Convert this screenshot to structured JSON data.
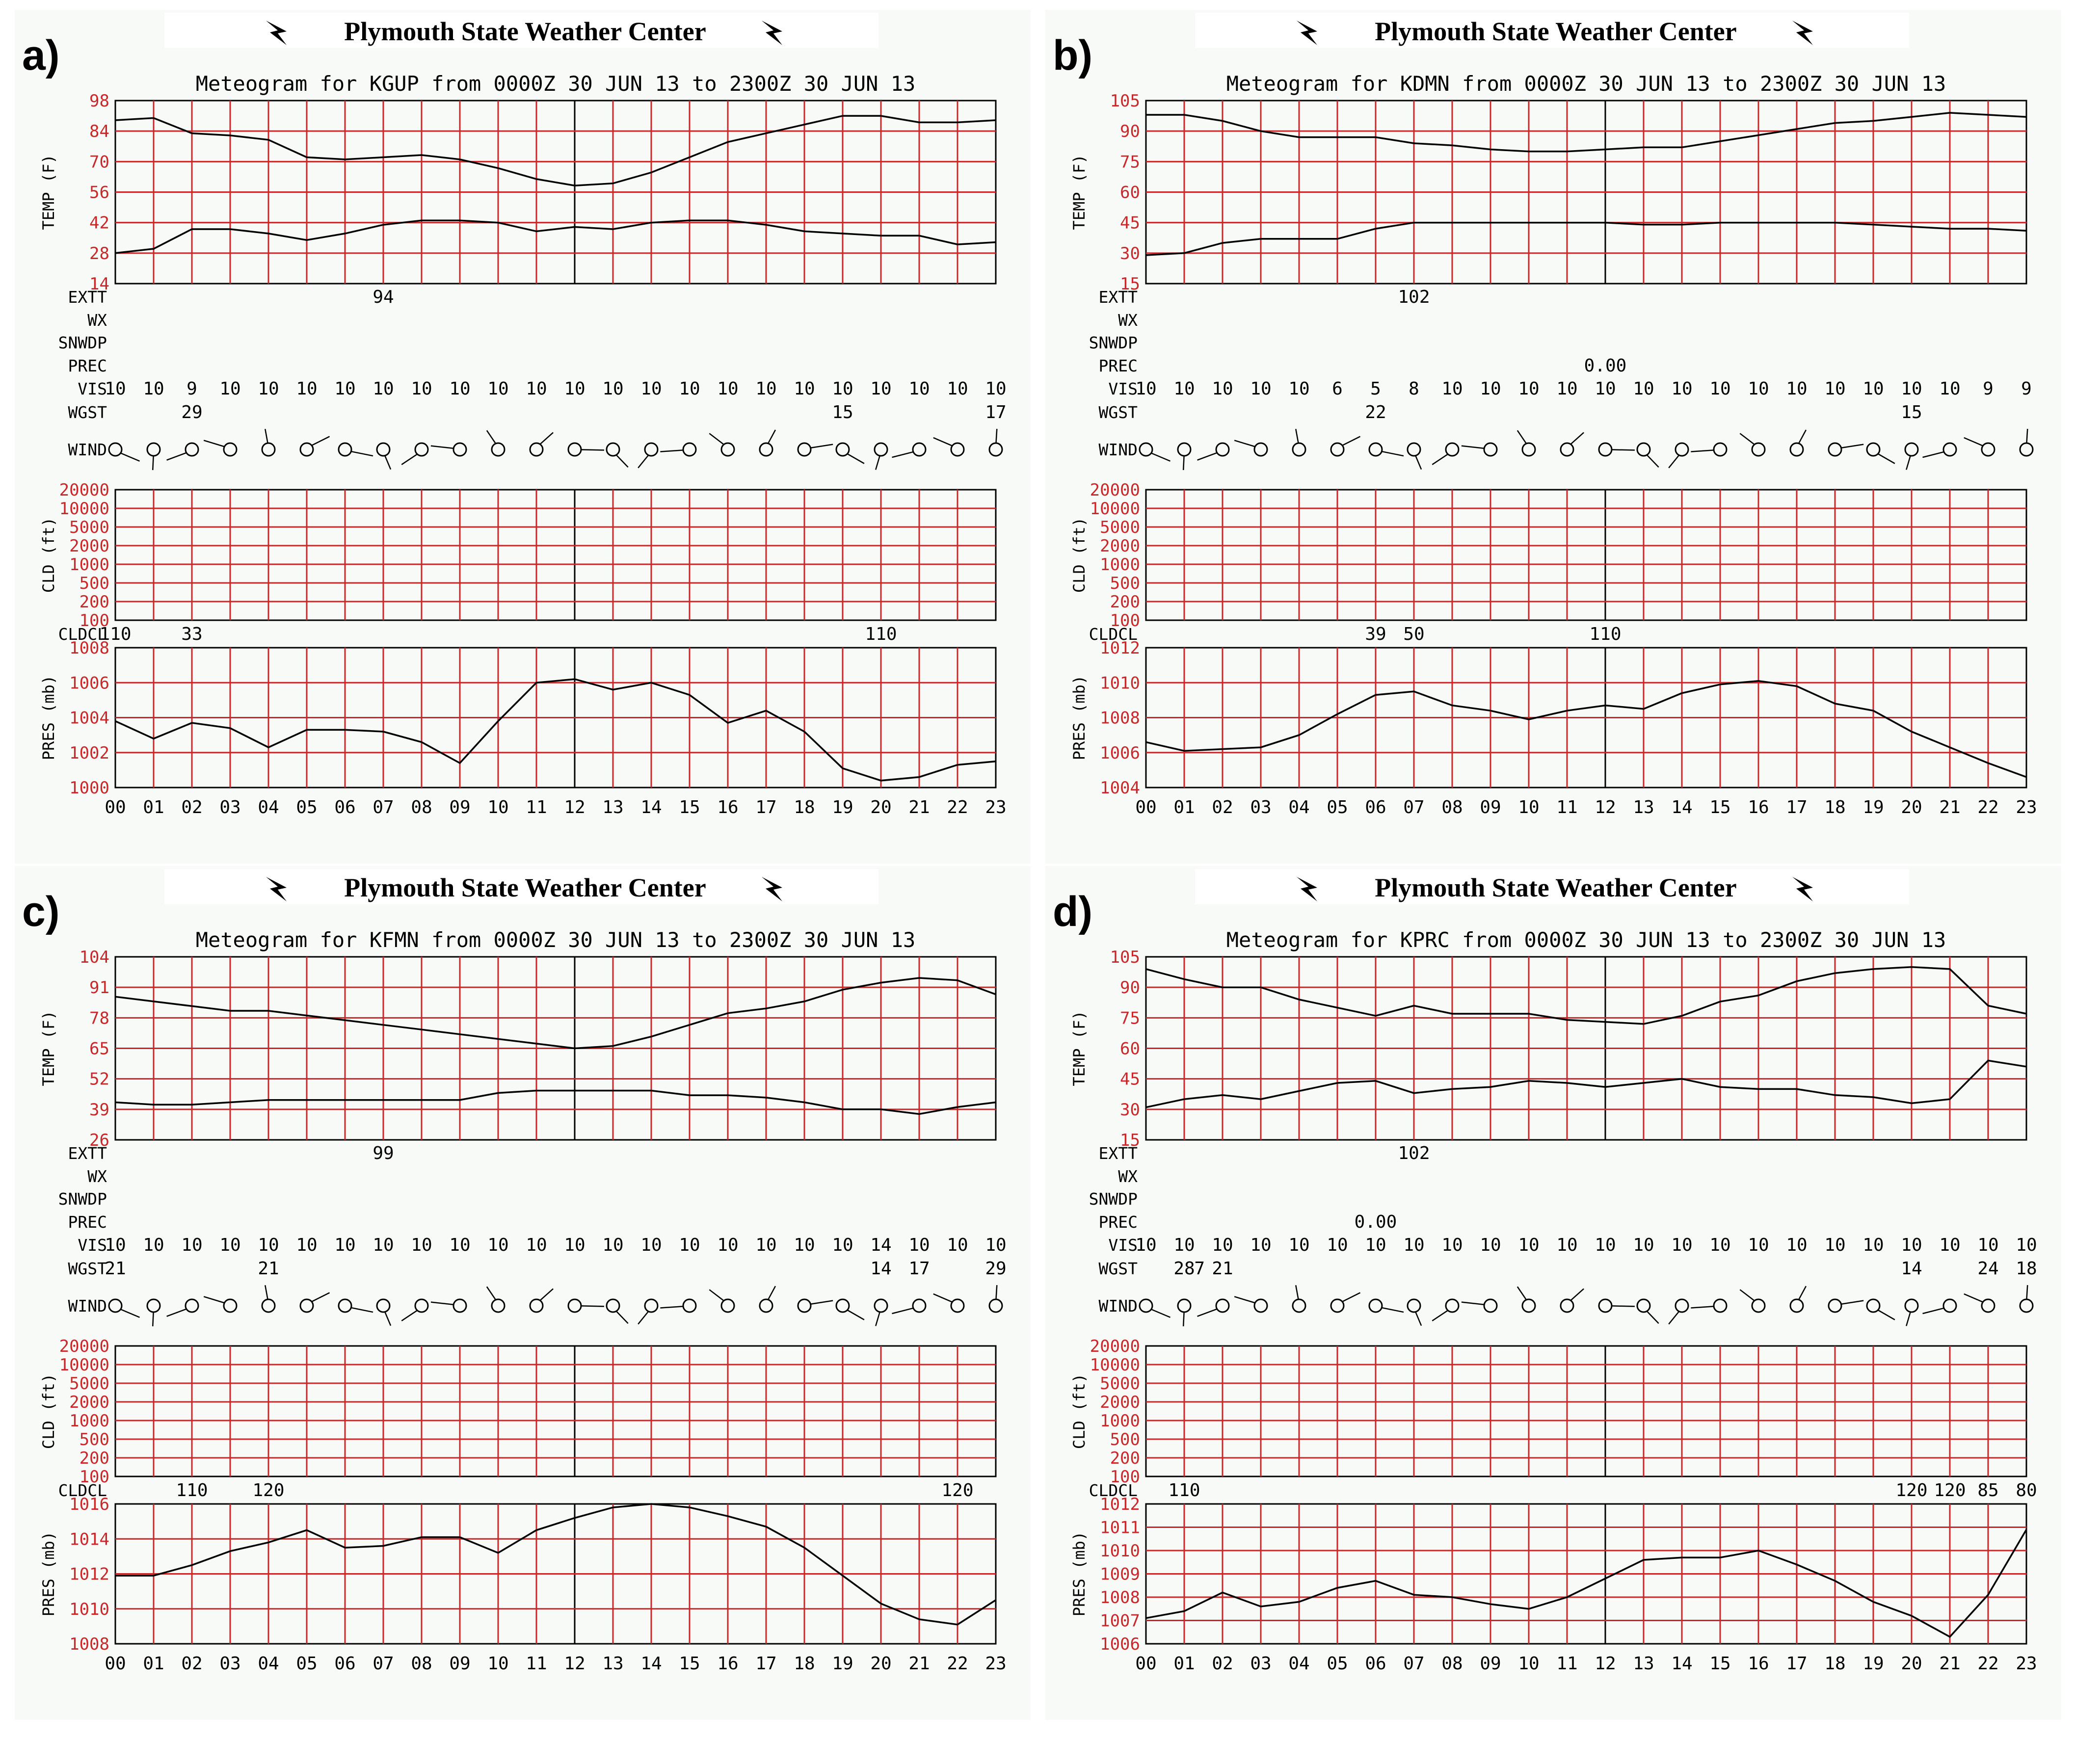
{
  "header_title": "Plymouth State Weather Center",
  "row_labels": {
    "extt": "EXTT",
    "wx": "WX",
    "snwdp": "SNWDP",
    "prec": "PREC",
    "vis": "VIS",
    "wgst": "WGST",
    "wind": "WIND",
    "cldcl": "CLDCL"
  },
  "axis_titles": {
    "temp": "TEMP (F)",
    "cld": "CLD (ft)",
    "pres": "PRES (mb)"
  },
  "hours": [
    "00",
    "01",
    "02",
    "03",
    "04",
    "05",
    "06",
    "07",
    "08",
    "09",
    "10",
    "11",
    "12",
    "13",
    "14",
    "15",
    "16",
    "17",
    "18",
    "19",
    "20",
    "21",
    "22",
    "23"
  ],
  "cld_ticks": [
    "20000",
    "10000",
    "5000",
    "2000",
    "1000",
    "500",
    "200",
    "100"
  ],
  "colors": {
    "grid": "#c8282a",
    "tick_text": "#c8282a",
    "line": "#000000",
    "panel_bg": "#f8faf7"
  },
  "chart_data": [
    {
      "panel": "a)",
      "type": "line",
      "title": "Meteogram for KGUP from 0000Z 30 JUN 13 to 2300Z 30 JUN 13",
      "temp": {
        "ylim": [
          14,
          98
        ],
        "ticks": [
          "98",
          "84",
          "70",
          "56",
          "42",
          "28",
          "14"
        ],
        "series": [
          {
            "name": "temperature",
            "values": [
              89,
              90,
              83,
              82,
              80,
              72,
              71,
              72,
              73,
              71,
              67,
              62,
              59,
              60,
              65,
              72,
              79,
              83,
              87,
              91,
              91,
              88,
              88,
              89
            ]
          },
          {
            "name": "dewpoint",
            "values": [
              28,
              30,
              39,
              39,
              37,
              34,
              37,
              41,
              43,
              43,
              42,
              38,
              40,
              39,
              42,
              43,
              43,
              41,
              38,
              37,
              36,
              36,
              32,
              33
            ]
          }
        ]
      },
      "extt": [
        {
          "hour": 7,
          "text": "94"
        }
      ],
      "prec": [],
      "vis": [
        "10",
        "10",
        "9",
        "10",
        "10",
        "10",
        "10",
        "10",
        "10",
        "10",
        "10",
        "10",
        "10",
        "10",
        "10",
        "10",
        "10",
        "10",
        "10",
        "10",
        "10",
        "10",
        "10",
        "10"
      ],
      "wgst": [
        {
          "hour": 2,
          "text": "29"
        },
        {
          "hour": 19,
          "text": "15"
        },
        {
          "hour": 23,
          "text": "17"
        }
      ],
      "cldcl": [
        {
          "hour": 0,
          "text": "110"
        },
        {
          "hour": 2,
          "text": "33"
        },
        {
          "hour": 20,
          "text": "110"
        }
      ],
      "pres": {
        "ylim": [
          1000,
          1008
        ],
        "ticks": [
          "1008",
          "1006",
          "1004",
          "1002",
          "1000"
        ],
        "values": [
          1003.8,
          1002.8,
          1003.7,
          1003.4,
          1002.3,
          1003.3,
          1003.3,
          1003.2,
          1002.6,
          1001.4,
          1003.8,
          1006.0,
          1006.2,
          1005.6,
          1006.0,
          1005.3,
          1003.7,
          1004.4,
          1003.2,
          1001.1,
          1000.4,
          1000.6,
          1001.3,
          1001.5
        ]
      }
    },
    {
      "panel": "b)",
      "type": "line",
      "title": "Meteogram for KDMN from 0000Z 30 JUN 13 to 2300Z 30 JUN 13",
      "temp": {
        "ylim": [
          15,
          105
        ],
        "ticks": [
          "105",
          "90",
          "75",
          "60",
          "45",
          "30",
          "15"
        ],
        "series": [
          {
            "name": "temperature",
            "values": [
              98,
              98,
              95,
              90,
              87,
              87,
              87,
              84,
              83,
              81,
              80,
              80,
              81,
              82,
              82,
              85,
              88,
              91,
              94,
              95,
              97,
              99,
              98,
              97
            ]
          },
          {
            "name": "dewpoint",
            "values": [
              29,
              30,
              35,
              37,
              37,
              37,
              42,
              45,
              45,
              45,
              45,
              45,
              45,
              44,
              44,
              45,
              45,
              45,
              45,
              44,
              43,
              42,
              42,
              41
            ]
          }
        ]
      },
      "extt": [
        {
          "hour": 7,
          "text": "102"
        }
      ],
      "prec": [
        {
          "hour": 12,
          "text": "0.00"
        }
      ],
      "vis": [
        "10",
        "10",
        "10",
        "10",
        "10",
        "6",
        "5",
        "8",
        "10",
        "10",
        "10",
        "10",
        "10",
        "10",
        "10",
        "10",
        "10",
        "10",
        "10",
        "10",
        "10",
        "10",
        "9",
        "9"
      ],
      "wgst": [
        {
          "hour": 6,
          "text": "22"
        },
        {
          "hour": 20,
          "text": "15"
        }
      ],
      "cldcl": [
        {
          "hour": 6,
          "text": "39"
        },
        {
          "hour": 7,
          "text": "50"
        },
        {
          "hour": 12,
          "text": "110"
        }
      ],
      "pres": {
        "ylim": [
          1004,
          1012
        ],
        "ticks": [
          "1012",
          "1010",
          "1008",
          "1006",
          "1004"
        ],
        "values": [
          1006.6,
          1006.1,
          1006.2,
          1006.3,
          1007.0,
          1008.2,
          1009.3,
          1009.5,
          1008.7,
          1008.4,
          1007.9,
          1008.4,
          1008.7,
          1008.5,
          1009.4,
          1009.9,
          1010.1,
          1009.8,
          1008.8,
          1008.4,
          1007.2,
          1006.3,
          1005.4,
          1004.6
        ]
      }
    },
    {
      "panel": "c)",
      "type": "line",
      "title": "Meteogram for KFMN from 0000Z 30 JUN 13 to 2300Z 30 JUN 13",
      "temp": {
        "ylim": [
          26,
          104
        ],
        "ticks": [
          "104",
          "91",
          "78",
          "65",
          "52",
          "39",
          "26"
        ],
        "series": [
          {
            "name": "temperature",
            "values": [
              87,
              85,
              83,
              81,
              81,
              79,
              77,
              75,
              73,
              71,
              69,
              67,
              65,
              66,
              70,
              75,
              80,
              82,
              85,
              90,
              93,
              95,
              94,
              88
            ]
          },
          {
            "name": "dewpoint",
            "values": [
              42,
              41,
              41,
              42,
              43,
              43,
              43,
              43,
              43,
              43,
              46,
              47,
              47,
              47,
              47,
              45,
              45,
              44,
              42,
              39,
              39,
              37,
              40,
              42
            ]
          }
        ]
      },
      "extt": [
        {
          "hour": 7,
          "text": "99"
        }
      ],
      "prec": [],
      "vis": [
        "10",
        "10",
        "10",
        "10",
        "10",
        "10",
        "10",
        "10",
        "10",
        "10",
        "10",
        "10",
        "10",
        "10",
        "10",
        "10",
        "10",
        "10",
        "10",
        "10",
        "14",
        "10",
        "10",
        "10"
      ],
      "wgst": [
        {
          "hour": 0,
          "text": "21"
        },
        {
          "hour": 4,
          "text": "21"
        },
        {
          "hour": 20,
          "text": "14"
        },
        {
          "hour": 21,
          "text": "17"
        },
        {
          "hour": 23,
          "text": "29"
        }
      ],
      "cldcl": [
        {
          "hour": 2,
          "text": "110"
        },
        {
          "hour": 4,
          "text": "120"
        },
        {
          "hour": 22,
          "text": "120"
        }
      ],
      "pres": {
        "ylim": [
          1008,
          1016
        ],
        "ticks": [
          "1016",
          "1014",
          "1012",
          "1010",
          "1008"
        ],
        "values": [
          1011.9,
          1011.9,
          1012.5,
          1013.3,
          1013.8,
          1014.5,
          1013.5,
          1013.6,
          1014.1,
          1014.1,
          1013.2,
          1014.5,
          1015.2,
          1015.8,
          1016.0,
          1015.8,
          1015.3,
          1014.7,
          1013.5,
          1011.9,
          1010.3,
          1009.4,
          1009.1,
          1010.5
        ]
      }
    },
    {
      "panel": "d)",
      "type": "line",
      "title": "Meteogram for KPRC from 0000Z 30 JUN 13 to 2300Z 30 JUN 13",
      "temp": {
        "ylim": [
          15,
          105
        ],
        "ticks": [
          "105",
          "90",
          "75",
          "60",
          "45",
          "30",
          "15"
        ],
        "series": [
          {
            "name": "temperature",
            "values": [
              99,
              94,
              90,
              90,
              84,
              80,
              76,
              81,
              77,
              77,
              77,
              74,
              73,
              72,
              76,
              83,
              86,
              93,
              97,
              99,
              100,
              99,
              81,
              77
            ]
          },
          {
            "name": "dewpoint",
            "values": [
              31,
              35,
              37,
              35,
              39,
              43,
              44,
              38,
              40,
              41,
              44,
              43,
              41,
              43,
              45,
              41,
              40,
              40,
              37,
              36,
              33,
              35,
              54,
              51
            ]
          }
        ]
      },
      "extt": [
        {
          "hour": 7,
          "text": "102"
        }
      ],
      "prec": [
        {
          "hour": 6,
          "text": "0.00"
        }
      ],
      "vis": [
        "10",
        "10",
        "10",
        "10",
        "10",
        "10",
        "10",
        "10",
        "10",
        "10",
        "10",
        "10",
        "10",
        "10",
        "10",
        "10",
        "10",
        "10",
        "10",
        "10",
        "10",
        "10",
        "10",
        "10"
      ],
      "wgst": [
        {
          "hour": 1,
          "text": "28"
        },
        {
          "hour": 1.4,
          "text": "7"
        },
        {
          "hour": 2,
          "text": "21"
        },
        {
          "hour": 20,
          "text": "14"
        },
        {
          "hour": 22,
          "text": "24"
        },
        {
          "hour": 23,
          "text": "18"
        }
      ],
      "cldcl": [
        {
          "hour": 1,
          "text": "110"
        },
        {
          "hour": 20,
          "text": "120"
        },
        {
          "hour": 21,
          "text": "120"
        },
        {
          "hour": 22,
          "text": "85"
        },
        {
          "hour": 23,
          "text": "80"
        }
      ],
      "pres": {
        "ylim": [
          1006,
          1012
        ],
        "ticks": [
          "1012",
          "1011",
          "1010",
          "1009",
          "1008",
          "1007",
          "1006"
        ],
        "values": [
          1007.1,
          1007.4,
          1008.2,
          1007.6,
          1007.8,
          1008.4,
          1008.7,
          1008.1,
          1008.0,
          1007.7,
          1007.5,
          1008.0,
          1008.8,
          1009.6,
          1009.7,
          1009.7,
          1010.0,
          1009.4,
          1008.7,
          1007.8,
          1007.2,
          1006.3,
          1008.1,
          1010.9
        ]
      }
    }
  ]
}
